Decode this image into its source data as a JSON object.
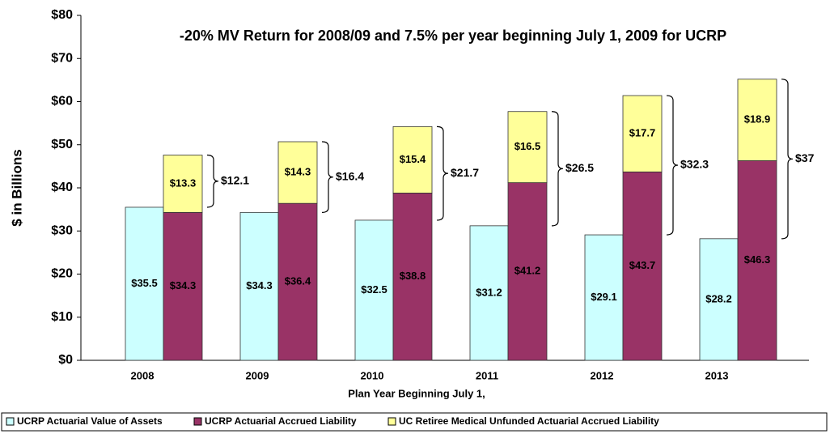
{
  "chart_data": {
    "type": "stacked-grouped-bar",
    "title": "-20% MV Return for 2008/09 and 7.5% per year beginning July 1, 2009 for UCRP",
    "ylabel": "$ in Billions",
    "xlabel": "Plan Year Beginning July 1,",
    "categories": [
      "2008",
      "2009",
      "2010",
      "2011",
      "2012",
      "2013"
    ],
    "series": [
      {
        "name": "UCRP Actuarial Value of Assets",
        "color": "#ccffff",
        "stack": "assets",
        "values": [
          35.5,
          34.3,
          32.5,
          31.2,
          29.1,
          28.2
        ],
        "value_labels": [
          "$35.5",
          "$34.3",
          "$32.5",
          "$31.2",
          "$29.1",
          "$28.2"
        ]
      },
      {
        "name": "UCRP Actuarial Accrued Liability",
        "color": "#993366",
        "stack": "liability",
        "values": [
          34.3,
          36.4,
          38.8,
          41.2,
          43.7,
          46.3
        ],
        "value_labels": [
          "$34.3",
          "$36.4",
          "$38.8",
          "$41.2",
          "$43.7",
          "$46.3"
        ]
      },
      {
        "name": "UC Retiree Medical Unfunded Actuarial Accrued Liability",
        "color": "#ffff99",
        "stack": "liability",
        "values": [
          13.3,
          14.3,
          15.4,
          16.5,
          17.7,
          18.9
        ],
        "value_labels": [
          "$13.3",
          "$14.3",
          "$15.4",
          "$16.5",
          "$17.7",
          "$18.9"
        ]
      }
    ],
    "gaps": {
      "color": "#ff0000",
      "values": [
        12.1,
        16.4,
        21.7,
        26.5,
        32.3,
        37
      ],
      "value_labels": [
        "$12.1",
        "$16.4",
        "$21.7",
        "$26.5",
        "$32.3",
        "$37"
      ]
    },
    "ylim": [
      0,
      80
    ],
    "yticks": [
      {
        "value": 0,
        "label": "$0"
      },
      {
        "value": 10,
        "label": "$10"
      },
      {
        "value": 20,
        "label": "$20"
      },
      {
        "value": 30,
        "label": "$30"
      },
      {
        "value": 40,
        "label": "$40"
      },
      {
        "value": 50,
        "label": "$50"
      },
      {
        "value": 60,
        "label": "$60"
      },
      {
        "value": 70,
        "label": "$70"
      },
      {
        "value": 80,
        "label": "$80"
      }
    ]
  }
}
